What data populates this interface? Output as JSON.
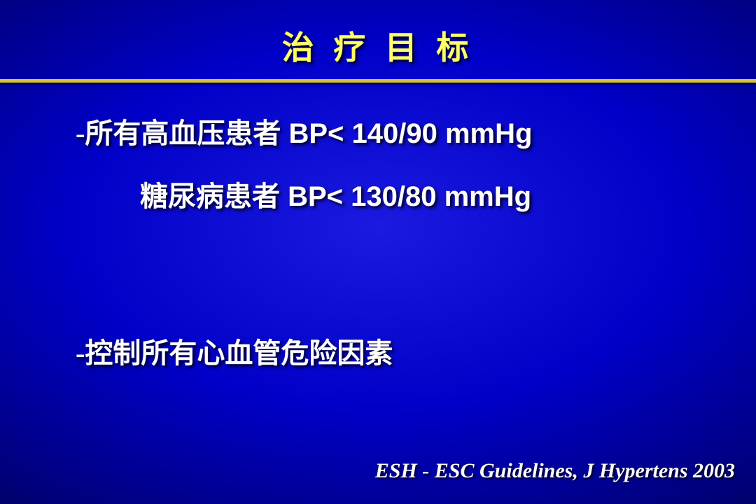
{
  "colors": {
    "background_center": "#1a1ae0",
    "background_mid": "#0000c8",
    "background_edge": "#000080",
    "text": "#ffffff",
    "divider": "#d5c43a",
    "shadow": "#000000"
  },
  "title": {
    "text": "治 疗 目 标",
    "color": "#ffff66",
    "fontsize": 46
  },
  "content": {
    "line1_cn": "-所有高血压患者",
    "line1_en": " BP< 140/90 mmHg",
    "line1_fontsize": 40,
    "line2_cn": "糖尿病患者",
    "line2_en": "  BP< 130/80 mmHg",
    "line2_fontsize": 40,
    "line3": "-控制所有心血管危险因素",
    "line3_fontsize": 40
  },
  "citation": {
    "text": "ESH - ESC Guidelines, J Hypertens 2003",
    "fontsize": 30,
    "font_style": "italic"
  }
}
